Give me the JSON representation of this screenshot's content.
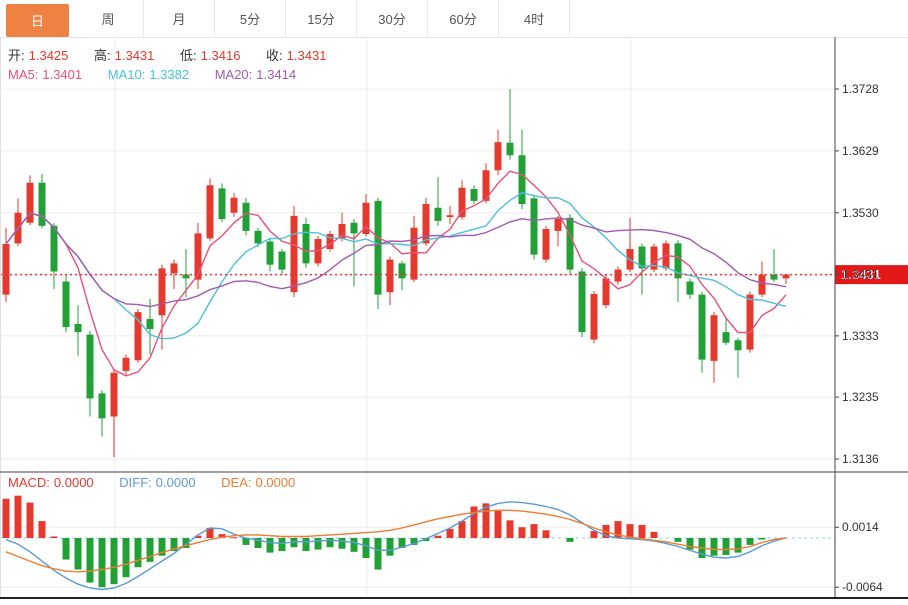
{
  "tabs": {
    "items": [
      {
        "name": "tab-day",
        "label": "日",
        "active": true
      },
      {
        "name": "tab-week",
        "label": "周",
        "active": false
      },
      {
        "name": "tab-month",
        "label": "月",
        "active": false
      },
      {
        "name": "tab-5min",
        "label": "5分",
        "active": false
      },
      {
        "name": "tab-15min",
        "label": "15分",
        "active": false
      },
      {
        "name": "tab-30min",
        "label": "30分",
        "active": false
      },
      {
        "name": "tab-60min",
        "label": "60分",
        "active": false
      },
      {
        "name": "tab-4hour",
        "label": "4时",
        "active": false
      }
    ]
  },
  "legend": {
    "open_label": "开:",
    "open_value": "1.3425",
    "high_label": "高:",
    "high_value": "1.3431",
    "low_label": "低:",
    "low_value": "1.3416",
    "close_label": "收:",
    "close_value": "1.3431",
    "ma5_label": "MA5:",
    "ma5_value": "1.3401",
    "ma10_label": "MA10:",
    "ma10_value": "1.3382",
    "ma20_label": "MA20:",
    "ma20_value": "1.3414",
    "macd_label": "MACD:",
    "macd_value": "0.0000",
    "diff_label": "DIFF:",
    "diff_value": "0.0000",
    "dea_label": "DEA:",
    "dea_value": "0.0000"
  },
  "axis": {
    "price_tick_labels": [
      "1.3728",
      "1.3629",
      "1.3530",
      "1.3431",
      "1.3333",
      "1.3235",
      "1.3136"
    ],
    "macd_tick_labels": [
      "0.0014",
      "-0.0064"
    ],
    "price_tag": "1.3431"
  },
  "colors": {
    "up": "#e5392e",
    "down": "#21a135",
    "ma5": "#e8517c",
    "ma10": "#4bc0d9",
    "ma20": "#a35ab2",
    "diff": "#5b9bd5",
    "dea": "#ed7d31",
    "label_text": "#333333",
    "tab_active_bg": "#ef8243",
    "tag_bg": "#e31717",
    "dotted_line": "#e5392e",
    "zero_dash": "#8fd3e8",
    "grid": "#ececf2",
    "axis_line": "#444444"
  },
  "chart_data": {
    "type": "candlestick",
    "title": "",
    "price_ticks": [
      1.3728,
      1.3629,
      1.353,
      1.3431,
      1.3333,
      1.3235,
      1.3136
    ],
    "current_price": 1.3431,
    "last_candle": {
      "open": 1.3425,
      "high": 1.3431,
      "low": 1.3416,
      "close": 1.3431
    },
    "ma_periods": [
      5,
      10,
      20
    ],
    "ma_last_values": {
      "ma5": 1.3401,
      "ma10": 1.3382,
      "ma20": 1.3414
    },
    "candles": [
      [
        1.3399,
        1.3506,
        1.3387,
        1.348
      ],
      [
        1.3481,
        1.3553,
        1.3477,
        1.353
      ],
      [
        1.3514,
        1.359,
        1.351,
        1.3578
      ],
      [
        1.3578,
        1.3592,
        1.3505,
        1.3509
      ],
      [
        1.3509,
        1.3513,
        1.3408,
        1.3436
      ],
      [
        1.342,
        1.343,
        1.3339,
        1.3347
      ],
      [
        1.3352,
        1.3382,
        1.3301,
        1.3339
      ],
      [
        1.3335,
        1.3341,
        1.3204,
        1.3233
      ],
      [
        1.3241,
        1.3246,
        1.3172,
        1.3201
      ],
      [
        1.3204,
        1.3279,
        1.3139,
        1.3274
      ],
      [
        1.3277,
        1.3303,
        1.3268,
        1.3298
      ],
      [
        1.3294,
        1.3376,
        1.329,
        1.3371
      ],
      [
        1.336,
        1.3392,
        1.3303,
        1.3344
      ],
      [
        1.3366,
        1.3447,
        1.3311,
        1.3441
      ],
      [
        1.3433,
        1.3455,
        1.3408,
        1.3449
      ],
      [
        1.3431,
        1.3472,
        1.3395,
        1.3425
      ],
      [
        1.3423,
        1.3514,
        1.3408,
        1.3497
      ],
      [
        1.3489,
        1.3585,
        1.3485,
        1.3574
      ],
      [
        1.3569,
        1.3577,
        1.3515,
        1.352
      ],
      [
        1.353,
        1.3562,
        1.3523,
        1.3554
      ],
      [
        1.3546,
        1.3554,
        1.3494,
        1.3501
      ],
      [
        1.3501,
        1.3506,
        1.3475,
        1.3481
      ],
      [
        1.3484,
        1.3488,
        1.3436,
        1.3447
      ],
      [
        1.3468,
        1.3472,
        1.3431,
        1.3439
      ],
      [
        1.3403,
        1.3541,
        1.3395,
        1.3525
      ],
      [
        1.3512,
        1.3522,
        1.3442,
        1.3449
      ],
      [
        1.3449,
        1.3493,
        1.3444,
        1.3488
      ],
      [
        1.3472,
        1.3501,
        1.3468,
        1.3496
      ],
      [
        1.3488,
        1.353,
        1.3484,
        1.3512
      ],
      [
        1.3514,
        1.352,
        1.3412,
        1.3497
      ],
      [
        1.3496,
        1.356,
        1.3492,
        1.3546
      ],
      [
        1.3549,
        1.3554,
        1.3376,
        1.3399
      ],
      [
        1.3403,
        1.346,
        1.3382,
        1.3455
      ],
      [
        1.3449,
        1.3453,
        1.3406,
        1.3425
      ],
      [
        1.3423,
        1.3525,
        1.3419,
        1.3506
      ],
      [
        1.3481,
        1.3554,
        1.3477,
        1.3544
      ],
      [
        1.3538,
        1.3587,
        1.3509,
        1.3517
      ],
      [
        1.3523,
        1.3541,
        1.3512,
        1.3526
      ],
      [
        1.3523,
        1.3582,
        1.3519,
        1.357
      ],
      [
        1.3568,
        1.3574,
        1.3544,
        1.3549
      ],
      [
        1.3549,
        1.3609,
        1.3545,
        1.3598
      ],
      [
        1.3598,
        1.3663,
        1.359,
        1.3643
      ],
      [
        1.3642,
        1.3728,
        1.3614,
        1.3622
      ],
      [
        1.3622,
        1.3663,
        1.3536,
        1.3544
      ],
      [
        1.3553,
        1.3558,
        1.3455,
        1.3463
      ],
      [
        1.3455,
        1.3509,
        1.345,
        1.3504
      ],
      [
        1.3501,
        1.3525,
        1.3476,
        1.352
      ],
      [
        1.3522,
        1.3528,
        1.3431,
        1.3439
      ],
      [
        1.3436,
        1.3441,
        1.3331,
        1.3339
      ],
      [
        1.3327,
        1.3405,
        1.3321,
        1.34
      ],
      [
        1.3382,
        1.343,
        1.3377,
        1.3425
      ],
      [
        1.342,
        1.3444,
        1.3415,
        1.3439
      ],
      [
        1.3439,
        1.3522,
        1.3435,
        1.3472
      ],
      [
        1.3476,
        1.3481,
        1.3399,
        1.3441
      ],
      [
        1.3439,
        1.3481,
        1.3435,
        1.3476
      ],
      [
        1.3441,
        1.3486,
        1.3437,
        1.3481
      ],
      [
        1.3481,
        1.3486,
        1.3387,
        1.3425
      ],
      [
        1.342,
        1.3425,
        1.3392,
        1.3399
      ],
      [
        1.3399,
        1.3404,
        1.3274,
        1.3295
      ],
      [
        1.3293,
        1.3371,
        1.3258,
        1.3366
      ],
      [
        1.3339,
        1.3363,
        1.3318,
        1.3322
      ],
      [
        1.3326,
        1.333,
        1.3266,
        1.331
      ],
      [
        1.3311,
        1.3404,
        1.3306,
        1.3399
      ],
      [
        1.3399,
        1.3452,
        1.3395,
        1.3431
      ],
      [
        1.3431,
        1.3472,
        1.3419,
        1.3423
      ],
      [
        1.3425,
        1.3431,
        1.3416,
        1.3431
      ]
    ],
    "macd": {
      "ticks": [
        0.0014,
        -0.0064
      ],
      "histogram": [
        0.0051,
        0.0055,
        0.0046,
        0.0022,
        0.0002,
        -0.0028,
        -0.0041,
        -0.0058,
        -0.0064,
        -0.006,
        -0.0051,
        -0.0038,
        -0.0031,
        -0.0023,
        -0.0017,
        -0.0013,
        0.0003,
        0.0013,
        0.0005,
        0.0001,
        -0.0009,
        -0.0013,
        -0.0019,
        -0.0017,
        -0.0012,
        -0.0017,
        -0.0015,
        -0.0012,
        -0.0014,
        -0.0018,
        -0.0026,
        -0.0041,
        -0.0023,
        -0.0013,
        -0.0009,
        -0.0004,
        0.0003,
        0.0012,
        0.0022,
        0.0041,
        0.0045,
        0.0036,
        0.0023,
        0.0014,
        0.0018,
        0.001,
        0.0,
        -0.0005,
        0.0,
        0.0009,
        0.0017,
        0.0022,
        0.0018,
        0.0017,
        0.0008,
        0.0,
        -0.0005,
        -0.0015,
        -0.0026,
        -0.0023,
        -0.0022,
        -0.0019,
        -0.0009,
        -0.0002,
        0.0,
        0.0
      ],
      "diff": [
        -0.0002,
        -0.0008,
        -0.0018,
        -0.003,
        -0.0042,
        -0.0052,
        -0.006,
        -0.0065,
        -0.0067,
        -0.0065,
        -0.0059,
        -0.005,
        -0.004,
        -0.003,
        -0.002,
        -0.0008,
        0.0004,
        0.0013,
        0.0012,
        0.0005,
        0.0,
        -0.0003,
        -0.0006,
        -0.0007,
        -0.0005,
        -0.0005,
        -0.0004,
        -0.0003,
        -0.0004,
        -0.0006,
        -0.001,
        -0.0016,
        -0.0016,
        -0.0012,
        -0.0007,
        -0.0001,
        0.0006,
        0.0013,
        0.0022,
        0.0032,
        0.004,
        0.0045,
        0.0047,
        0.0046,
        0.0044,
        0.0041,
        0.0037,
        0.003,
        0.002,
        0.001,
        0.0003,
        0.0,
        -0.0001,
        -0.0002,
        -0.0004,
        -0.0007,
        -0.0011,
        -0.0016,
        -0.0021,
        -0.0025,
        -0.0026,
        -0.0024,
        -0.0018,
        -0.001,
        -0.0004,
        0.0
      ],
      "dea": [
        -0.0018,
        -0.0024,
        -0.003,
        -0.0036,
        -0.004,
        -0.0043,
        -0.0044,
        -0.0043,
        -0.0041,
        -0.0038,
        -0.0034,
        -0.0029,
        -0.0024,
        -0.0019,
        -0.0014,
        -0.001,
        -0.0006,
        -0.0002,
        0.0001,
        0.0003,
        0.0004,
        0.0004,
        0.0003,
        0.0002,
        0.0002,
        0.0002,
        0.0003,
        0.0004,
        0.0005,
        0.0006,
        0.0007,
        0.0008,
        0.001,
        0.0013,
        0.0017,
        0.0021,
        0.0025,
        0.0028,
        0.0031,
        0.0033,
        0.0035,
        0.0036,
        0.0036,
        0.0035,
        0.0033,
        0.0031,
        0.0028,
        0.0024,
        0.0019,
        0.0013,
        0.0008,
        0.0004,
        0.0001,
        -0.0001,
        -0.0003,
        -0.0005,
        -0.0008,
        -0.0011,
        -0.0013,
        -0.0015,
        -0.0015,
        -0.0014,
        -0.0011,
        -0.0006,
        -0.0002,
        0.0
      ]
    }
  }
}
